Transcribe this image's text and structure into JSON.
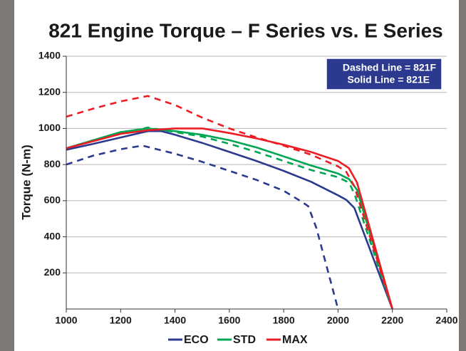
{
  "chart_data": {
    "type": "line",
    "title": "821 Engine Torque – F Series vs. E Series",
    "y_label": "Torque (N-m)",
    "annotation": [
      "Dashed Line = 821F",
      "Solid Line = 821E"
    ],
    "xlim": [
      1000,
      2400
    ],
    "xticks": [
      1000,
      1200,
      1400,
      1600,
      1800,
      2000,
      2200,
      2400
    ],
    "ylim": [
      0,
      1400
    ],
    "yticks": [
      200,
      400,
      600,
      800,
      1000,
      1200,
      1400
    ],
    "grid": true,
    "series": [
      {
        "name": "ECO",
        "color": "#2b3a8f",
        "solid": {
          "x": [
            1000,
            1100,
            1200,
            1300,
            1350,
            1400,
            1500,
            1600,
            1700,
            1800,
            1900,
            2000,
            2030,
            2060,
            2200
          ],
          "values": [
            882,
            915,
            950,
            985,
            985,
            965,
            920,
            870,
            820,
            765,
            705,
            630,
            605,
            560,
            0
          ]
        },
        "dashed": {
          "x": [
            1000,
            1100,
            1200,
            1280,
            1400,
            1500,
            1600,
            1700,
            1800,
            1860,
            1890,
            1920,
            2000
          ],
          "values": [
            800,
            850,
            885,
            905,
            860,
            815,
            765,
            715,
            655,
            600,
            570,
            450,
            0
          ]
        }
      },
      {
        "name": "STD",
        "color": "#00a651",
        "solid": {
          "x": [
            1000,
            1100,
            1200,
            1300,
            1400,
            1500,
            1600,
            1700,
            1800,
            1900,
            2000,
            2040,
            2070,
            2200
          ],
          "values": [
            890,
            935,
            980,
            1000,
            985,
            965,
            935,
            895,
            845,
            795,
            750,
            720,
            660,
            0
          ]
        },
        "dashed": {
          "x": [
            1000,
            1100,
            1200,
            1300,
            1400,
            1500,
            1600,
            1700,
            1800,
            1900,
            2000,
            2040,
            2060,
            2200
          ],
          "values": [
            890,
            935,
            975,
            1005,
            980,
            955,
            915,
            870,
            820,
            770,
            730,
            700,
            640,
            0
          ]
        }
      },
      {
        "name": "MAX",
        "color": "#ed1c24",
        "solid": {
          "x": [
            1000,
            1100,
            1200,
            1300,
            1400,
            1500,
            1600,
            1700,
            1800,
            1900,
            2000,
            2040,
            2070,
            2200
          ],
          "values": [
            890,
            930,
            970,
            990,
            1000,
            1000,
            975,
            945,
            910,
            870,
            820,
            780,
            700,
            0
          ]
        },
        "dashed": {
          "x": [
            1000,
            1100,
            1200,
            1300,
            1400,
            1500,
            1600,
            1700,
            1800,
            1900,
            2000,
            2030,
            2060,
            2200
          ],
          "values": [
            1065,
            1110,
            1150,
            1180,
            1130,
            1060,
            1000,
            950,
            905,
            855,
            790,
            760,
            680,
            0
          ]
        }
      }
    ]
  }
}
